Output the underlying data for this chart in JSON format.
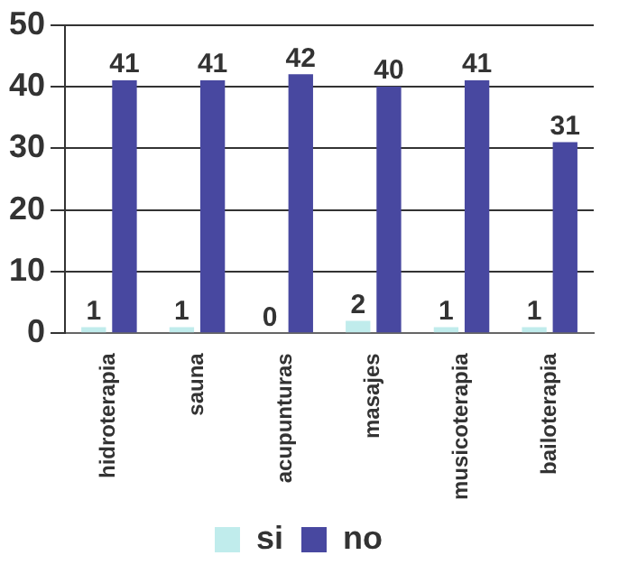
{
  "chart_data": {
    "type": "bar",
    "categories": [
      "hidroterapia",
      "sauna",
      "acupunturas",
      "masajes",
      "musicoterapia",
      "bailoterapia"
    ],
    "series": [
      {
        "name": "si",
        "color": "#c0ecec",
        "values": [
          1,
          1,
          0,
          2,
          1,
          1
        ]
      },
      {
        "name": "no",
        "color": "#4848a0",
        "values": [
          41,
          41,
          42,
          40,
          41,
          31
        ]
      }
    ],
    "ylim": [
      0,
      50
    ],
    "yticks": [
      0,
      10,
      20,
      30,
      40,
      50
    ],
    "grid": "y",
    "legend": "bottom",
    "data_labels": true
  }
}
